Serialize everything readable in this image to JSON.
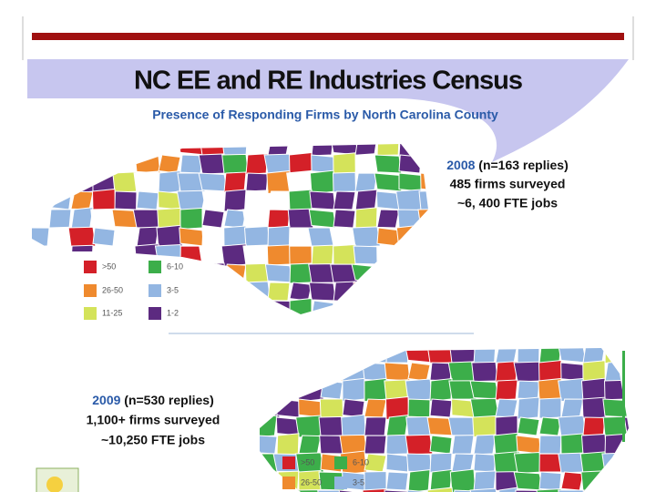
{
  "header": {
    "title": "NC EE and RE Industries Census",
    "subtitle": "Presence of Responding Firms by North Carolina County"
  },
  "map_2008": {
    "year": "2008",
    "detail": "(n=163 replies)",
    "lines": [
      "485 firms surveyed",
      "~6, 400 FTE jobs"
    ],
    "legend": [
      ">50",
      "6-10",
      "26-50",
      "3-5",
      "11-25",
      "1-2"
    ]
  },
  "map_2009": {
    "year": "2009",
    "detail": "(n=530 replies)",
    "lines": [
      "1,100+ firms surveyed",
      "~10,250 FTE jobs"
    ],
    "legend": [
      ">50",
      "6-10",
      "26-50",
      "3-5"
    ]
  }
}
